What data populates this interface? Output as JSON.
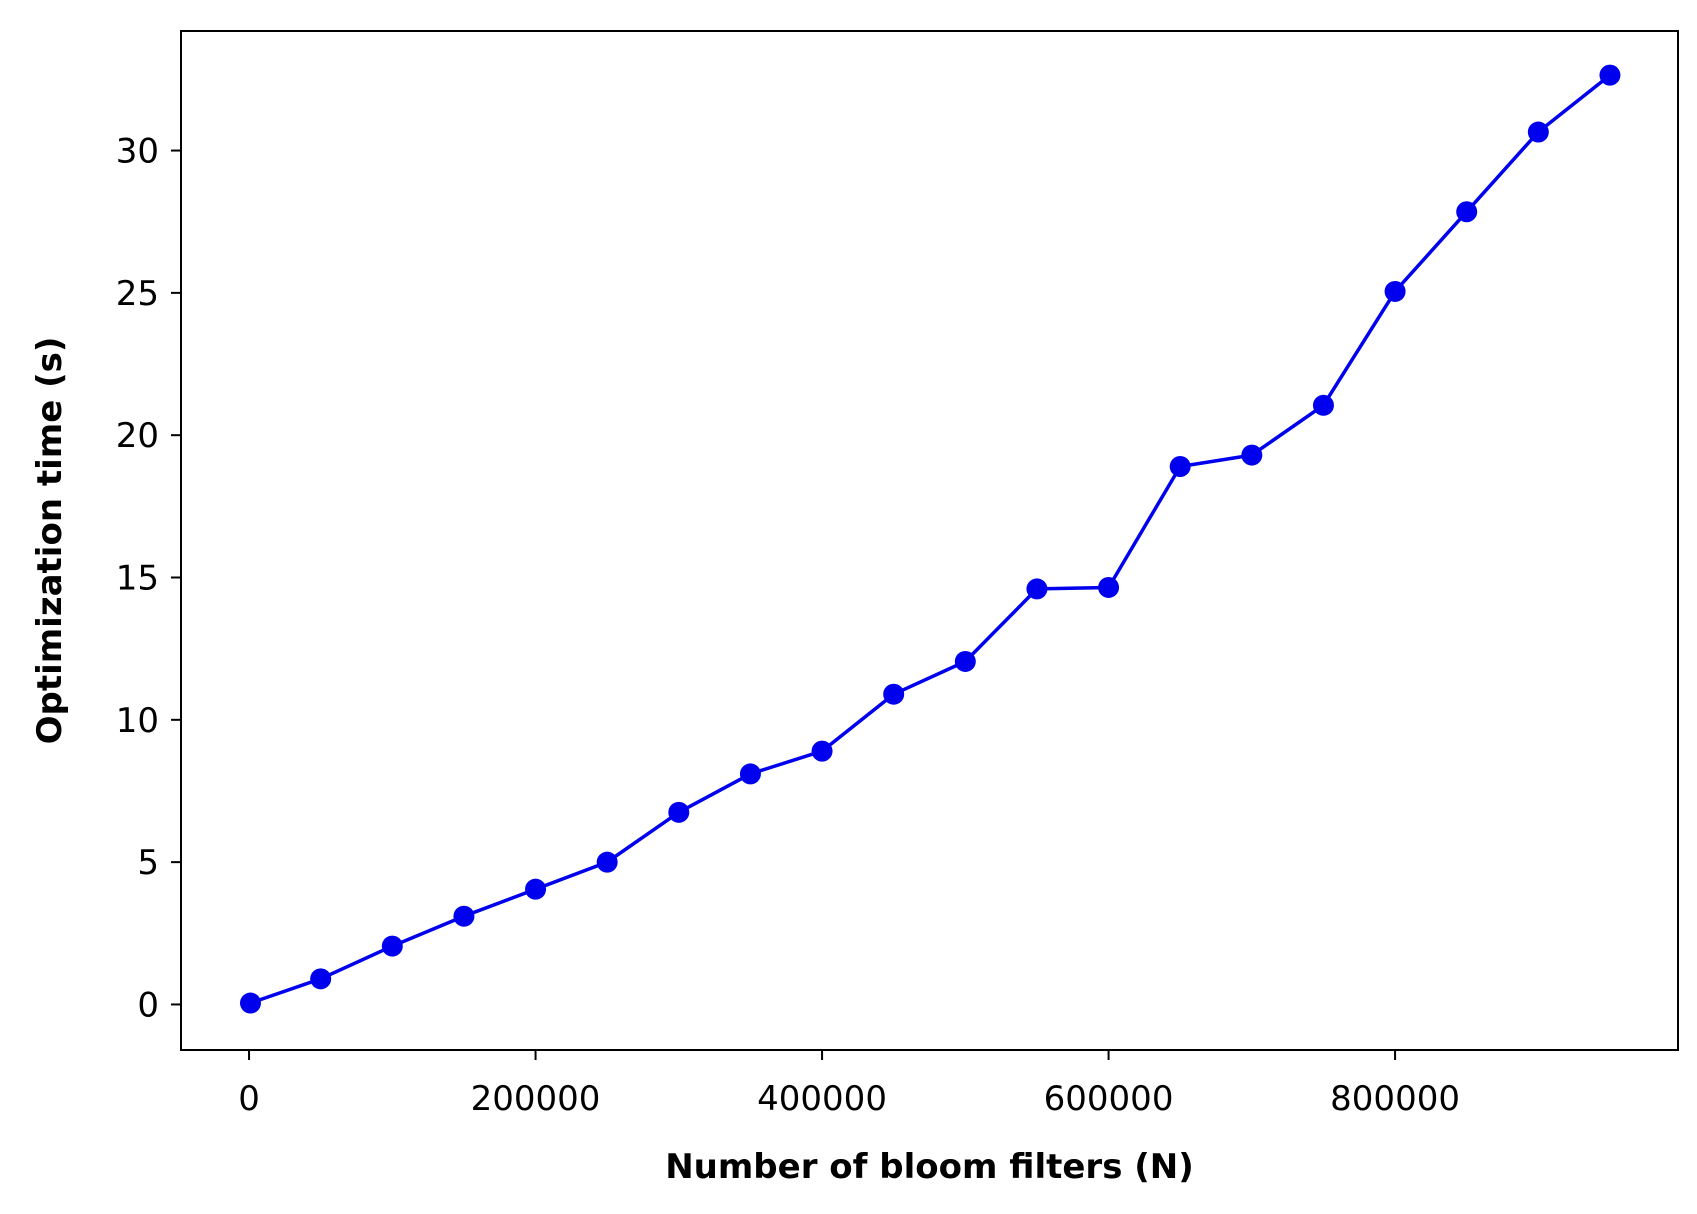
{
  "chart_data": {
    "type": "line",
    "xlabel": "Number of bloom filters (N)",
    "ylabel": "Optimization time (s)",
    "xlim": [
      -47500,
      997500
    ],
    "ylim": [
      -1.6,
      34.2
    ],
    "xticks": [
      0,
      200000,
      400000,
      600000,
      800000
    ],
    "xtick_labels": [
      "0",
      "200000",
      "400000",
      "600000",
      "800000"
    ],
    "yticks": [
      0,
      5,
      10,
      15,
      20,
      25,
      30
    ],
    "ytick_labels": [
      "0",
      "5",
      "10",
      "15",
      "20",
      "25",
      "30"
    ],
    "grid": false,
    "legend": "none",
    "series": [
      {
        "color": "#0000ee",
        "marker": "circle",
        "x": [
          1000,
          50000,
          100000,
          150000,
          200000,
          250000,
          300000,
          350000,
          400000,
          450000,
          500000,
          550000,
          600000,
          650000,
          700000,
          750000,
          800000,
          850000,
          900000,
          950000
        ],
        "y": [
          0.05,
          0.9,
          2.05,
          3.1,
          4.05,
          5.0,
          6.75,
          8.1,
          8.9,
          10.9,
          12.05,
          14.6,
          14.65,
          18.9,
          19.3,
          21.05,
          25.05,
          27.85,
          30.65,
          32.65
        ]
      }
    ]
  }
}
